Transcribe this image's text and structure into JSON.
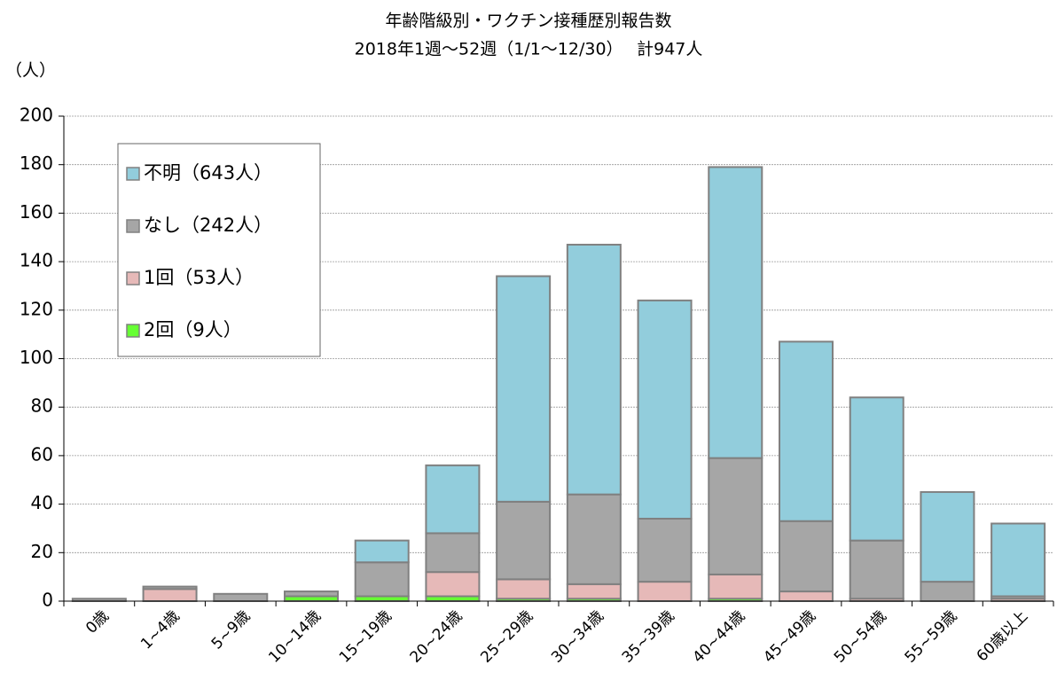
{
  "chart_data": {
    "type": "stacked_bar",
    "title": "年齢階級別・ワクチン接種歴別報告数",
    "subtitle": "2018年1週〜52週（1/1〜12/30）　 計947人",
    "y_label": "（人）",
    "categories": [
      "0歳",
      "1~4歳",
      "5~9歳",
      "10~14歳",
      "15~19歳",
      "20~24歳",
      "25~29歳",
      "30~34歳",
      "35~39歳",
      "40~44歳",
      "45~49歳",
      "50~54歳",
      "55~59歳",
      "60歳以上"
    ],
    "series": [
      {
        "name": "不明（643人）",
        "color": "#92cddc",
        "values": [
          0,
          0,
          0,
          0,
          9,
          28,
          93,
          103,
          90,
          120,
          74,
          59,
          37,
          30
        ]
      },
      {
        "name": "なし（242人）",
        "color": "#a6a6a6",
        "values": [
          1,
          1,
          3,
          2,
          14,
          16,
          32,
          37,
          26,
          48,
          29,
          24,
          8,
          1
        ]
      },
      {
        "name": "1回（53人）",
        "color": "#e6b9b8",
        "values": [
          0,
          5,
          0,
          0,
          0,
          10,
          8,
          6,
          8,
          10,
          4,
          1,
          0,
          1
        ]
      },
      {
        "name": "2回（9人）",
        "color": "#66ff33",
        "values": [
          0,
          0,
          0,
          2,
          2,
          2,
          1,
          1,
          0,
          1,
          0,
          0,
          0,
          0
        ]
      }
    ],
    "ylim": [
      0,
      200
    ],
    "yticks": [
      0,
      20,
      40,
      60,
      80,
      100,
      120,
      140,
      160,
      180,
      200
    ],
    "grid": true
  }
}
